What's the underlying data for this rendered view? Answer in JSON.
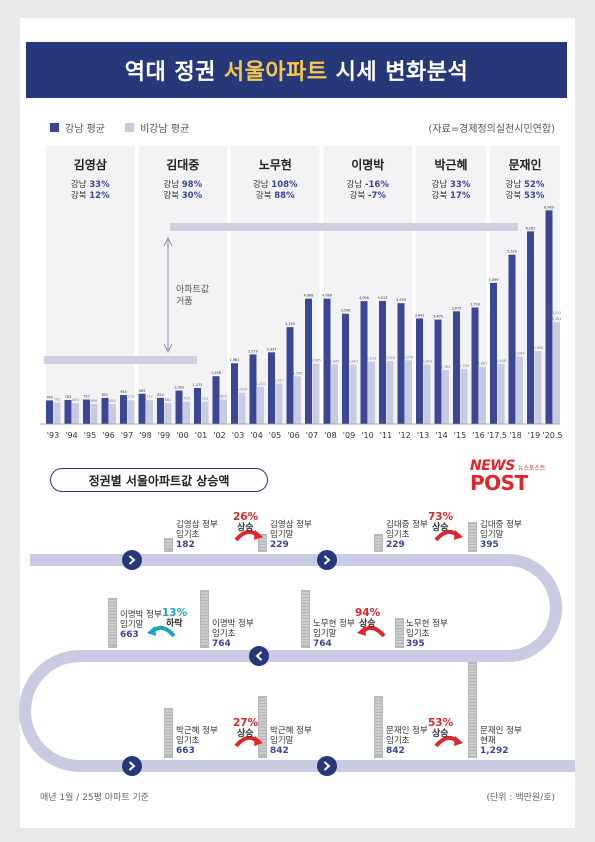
{
  "title": {
    "part1": "역대 정권",
    "highlight": "서울아파트",
    "part2": "시세 변화분석"
  },
  "legend": {
    "gangnam": "강남 평균",
    "nongangnam": "비강남 평균"
  },
  "source": "(자료=경제정의실천시민연합)",
  "colors": {
    "gangnam": "#3b4796",
    "nongangnam": "#c9cbe0",
    "title_bg": "#27387a",
    "highlight": "#f7c948",
    "up": "#e0262b",
    "down": "#19a7b8"
  },
  "annotation": "아파트값 거품",
  "eras": [
    {
      "name": "김영삼",
      "gn_label": "강남",
      "gn": "33%",
      "nb_label": "강북",
      "nb": "12%",
      "from": 0,
      "to": 5
    },
    {
      "name": "김대중",
      "gn_label": "강남",
      "gn": "98%",
      "nb_label": "강북",
      "nb": "30%",
      "from": 5,
      "to": 10
    },
    {
      "name": "노무현",
      "gn_label": "강남",
      "gn": "108%",
      "nb_label": "강북",
      "nb": "88%",
      "from": 10,
      "to": 15
    },
    {
      "name": "이명박",
      "gn_label": "강남",
      "gn": "-16%",
      "nb_label": "강북",
      "nb": "-7%",
      "from": 15,
      "to": 20
    },
    {
      "name": "박근혜",
      "gn_label": "강남",
      "gn": "33%",
      "nb_label": "강북",
      "nb": "17%",
      "from": 20,
      "to": 24
    },
    {
      "name": "문재인",
      "gn_label": "강남",
      "gn": "52%",
      "nb_label": "강북",
      "nb": "53%",
      "from": 24,
      "to": 28
    }
  ],
  "chart_data": {
    "type": "bar",
    "categories": [
      "'93",
      "'94",
      "'95",
      "'96",
      "'97",
      "'98",
      "'99",
      "'00",
      "'01",
      "'02",
      "'03",
      "'04",
      "'05",
      "'06",
      "'07",
      "'08",
      "'09",
      "'10",
      "'11",
      "'12",
      "'13",
      "'14",
      "'15",
      "'16",
      "'17.5",
      "'18",
      "'19",
      "'20.5"
    ],
    "series": [
      {
        "name": "강남 평균",
        "values": [
          769,
          783,
          797,
          852,
          944,
          985,
          854,
          1089,
          1175,
          1558,
          1981,
          2270,
          2337,
          3159,
          4088,
          4088,
          3596,
          4006,
          4013,
          3939,
          3441,
          3405,
          3675,
          3799,
          4599,
          5520,
          6282,
          6969
        ]
      },
      {
        "name": "비강남 평균",
        "values": [
          702,
          683,
          656,
          650,
          775,
          777,
          680,
          726,
          725,
          805,
          1020,
          1210,
          1317,
          1555,
          1965,
          1945,
          1943,
          2033,
          2050,
          2075,
          1943,
          1764,
          1794,
          1867,
          1958,
          2204,
          2380,
          3324
        ]
      }
    ],
    "extra_labels": [
      "",
      "",
      "",
      "",
      "",
      "",
      "",
      "",
      "",
      "",
      "",
      "",
      "",
      "",
      "",
      "",
      "",
      "",
      "",
      "",
      "",
      "",
      "",
      "",
      "",
      "",
      "",
      "3,211"
    ],
    "ylim": [
      0,
      7500
    ],
    "xlabel": "",
    "ylabel": ""
  },
  "section_title": "정권별 서울아파트값 상승액",
  "logo": {
    "news": "NEWS",
    "small": "뉴스포스트",
    "post": "POST"
  },
  "flow": [
    {
      "name": "김영삼",
      "tag": "정부",
      "start_label": "임기초",
      "start": "182",
      "end_label": "임기말",
      "end": "229",
      "pct": "26%",
      "dir": "상승",
      "up": true
    },
    {
      "name": "김대중",
      "tag": "정부",
      "start_label": "임기초",
      "start": "229",
      "end_label": "임기말",
      "end": "395",
      "pct": "73%",
      "dir": "상승",
      "up": true
    },
    {
      "name": "노무현",
      "tag": "정부",
      "start_label": "임기초",
      "start": "395",
      "end_label": "임기말",
      "end": "764",
      "pct": "94%",
      "dir": "상승",
      "up": true
    },
    {
      "name": "이명박",
      "tag": "정부",
      "start_label": "임기초",
      "start": "764",
      "end_label": "임기말",
      "end": "663",
      "pct": "13%",
      "dir": "하락",
      "up": false
    },
    {
      "name": "박근혜",
      "tag": "정부",
      "start_label": "임기초",
      "start": "663",
      "end_label": "임기말",
      "end": "842",
      "pct": "27%",
      "dir": "상승",
      "up": true
    },
    {
      "name": "문재인",
      "tag": "정부",
      "start_label": "임기초",
      "start": "842",
      "end_label": "현재",
      "end": "1,292",
      "pct": "53%",
      "dir": "상승",
      "up": true
    }
  ],
  "footer": {
    "left": "매년 1월 / 25평 아파트 기준",
    "right": "(단위 : 백만원/호)"
  }
}
